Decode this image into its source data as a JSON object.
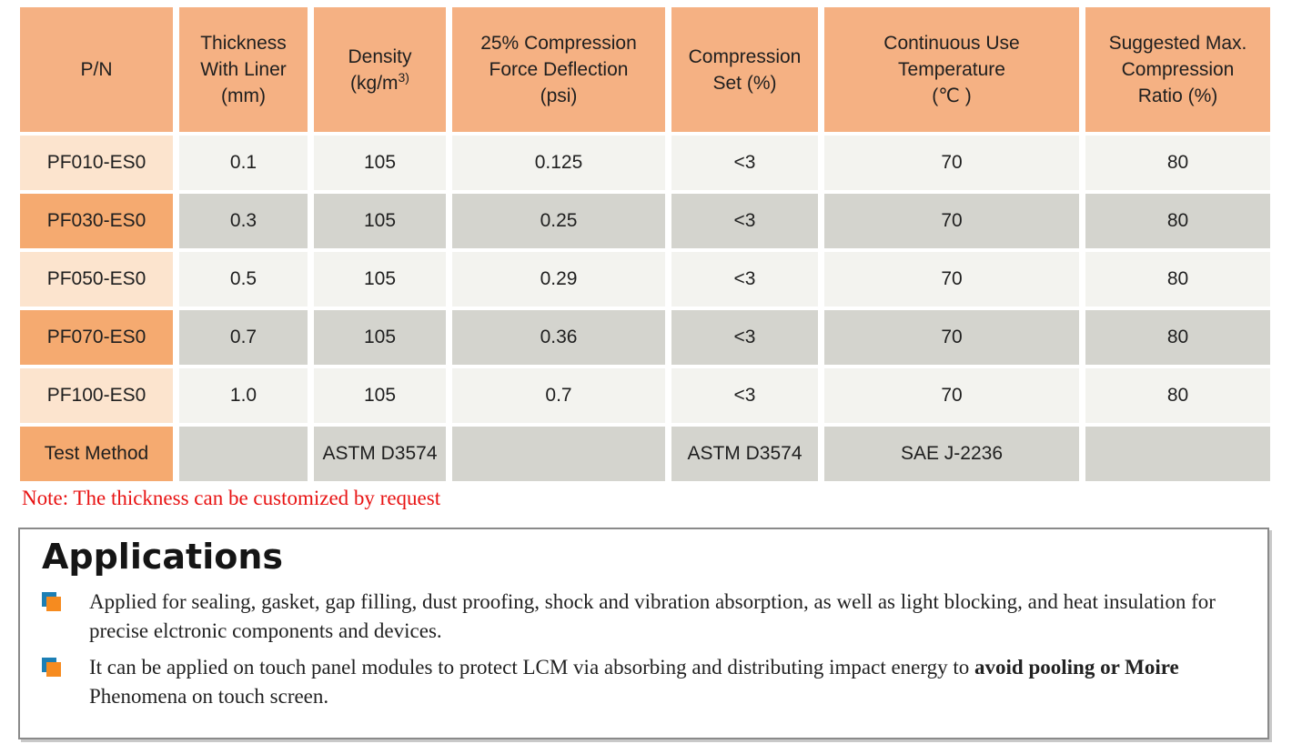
{
  "colors": {
    "header_orange": "#F5B183",
    "pn_light": "#FCE4CE",
    "pn_dark": "#F5AA70",
    "cell_light": "#F3F3EF",
    "cell_dark": "#D4D4CE",
    "note_red": "#E81313",
    "bullet_orange": "#F68B1F",
    "bullet_blue": "#1C7FB5"
  },
  "table": {
    "header_cells": [
      {
        "lines": [
          "P/N"
        ]
      },
      {
        "lines": [
          "Thickness",
          "With Liner",
          "(mm)"
        ]
      },
      {
        "lines": [
          "Density",
          "(kg/m^3)"
        ]
      },
      {
        "lines": [
          "25% Compression",
          "Force Deflection",
          "(psi)"
        ]
      },
      {
        "lines": [
          "Compression",
          "Set (%)"
        ]
      },
      {
        "lines": [
          "Continuous Use",
          "Temperature",
          "(℃ )"
        ]
      },
      {
        "lines": [
          "Suggested Max.",
          "Compression",
          "Ratio (%)"
        ]
      }
    ],
    "rows": [
      {
        "pn": "PF010-ES0",
        "values": [
          "0.1",
          "105",
          "0.125",
          "<3",
          "70",
          "80"
        ],
        "shade": "light"
      },
      {
        "pn": "PF030-ES0",
        "values": [
          "0.3",
          "105",
          "0.25",
          "<3",
          "70",
          "80"
        ],
        "shade": "dark"
      },
      {
        "pn": "PF050-ES0",
        "values": [
          "0.5",
          "105",
          "0.29",
          "<3",
          "70",
          "80"
        ],
        "shade": "light"
      },
      {
        "pn": "PF070-ES0",
        "values": [
          "0.7",
          "105",
          "0.36",
          "<3",
          "70",
          "80"
        ],
        "shade": "dark"
      },
      {
        "pn": "PF100-ES0",
        "values": [
          "1.0",
          "105",
          "0.7",
          "<3",
          "70",
          "80"
        ],
        "shade": "light"
      },
      {
        "pn": "Test Method",
        "values": [
          "",
          "ASTM D3574",
          "",
          "ASTM D3574",
          "SAE J-2236",
          ""
        ],
        "shade": "dark"
      }
    ]
  },
  "note": {
    "text": "Note: The thickness can be customized by request"
  },
  "applications": {
    "title": "Applications",
    "bullets": [
      {
        "segments": [
          {
            "text": "Applied for sealing, gasket, gap filling, dust proofing, shock and vibration absorption, as well as light blocking, and heat insulation for precise elctronic components and devices.",
            "bold": false
          }
        ]
      },
      {
        "segments": [
          {
            "text": "It can be applied on touch panel modules to protect LCM via absorbing and distributing impact energy to ",
            "bold": false
          },
          {
            "text": "avoid pooling or Moire",
            "bold": true
          },
          {
            "text": " Phenomena on touch screen.",
            "bold": false
          }
        ]
      }
    ]
  }
}
